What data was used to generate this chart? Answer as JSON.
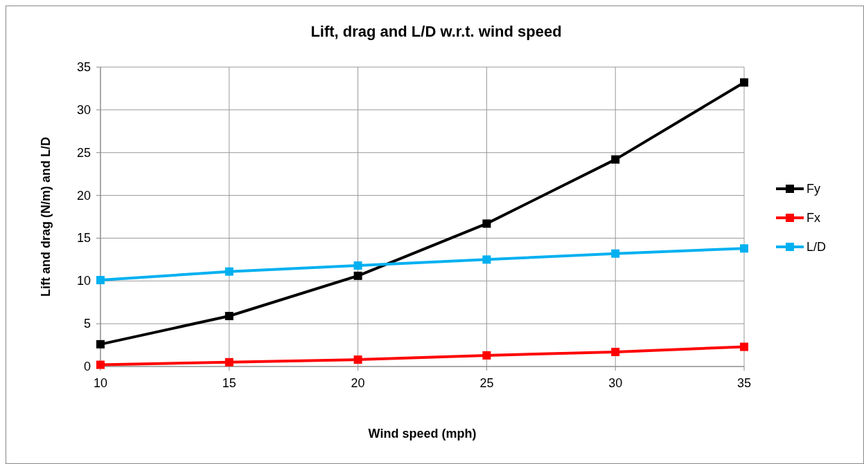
{
  "chart_data": {
    "type": "line",
    "title": "Lift, drag and L/D w.r.t. wind speed",
    "xlabel": "Wind speed (mph)",
    "ylabel": "Lift and drag (N/m) and L/D",
    "x": [
      10,
      15,
      20,
      25,
      30,
      35
    ],
    "series": [
      {
        "name": "Fy",
        "color": "#000000",
        "values": [
          2.6,
          5.9,
          10.6,
          16.7,
          24.2,
          33.2
        ]
      },
      {
        "name": "Fx",
        "color": "#ff0000",
        "values": [
          0.2,
          0.5,
          0.8,
          1.3,
          1.7,
          2.3
        ]
      },
      {
        "name": "L/D",
        "color": "#00b0f0",
        "values": [
          10.1,
          11.1,
          11.8,
          12.5,
          13.2,
          13.8
        ]
      }
    ],
    "xlim": [
      10,
      35
    ],
    "xticks": [
      10,
      15,
      20,
      25,
      30,
      35
    ],
    "ylim": [
      0,
      35
    ],
    "yticks": [
      0,
      5,
      10,
      15,
      20,
      25,
      30,
      35
    ],
    "grid": true,
    "legend": "right",
    "marker": "square",
    "line_style": "solid"
  }
}
